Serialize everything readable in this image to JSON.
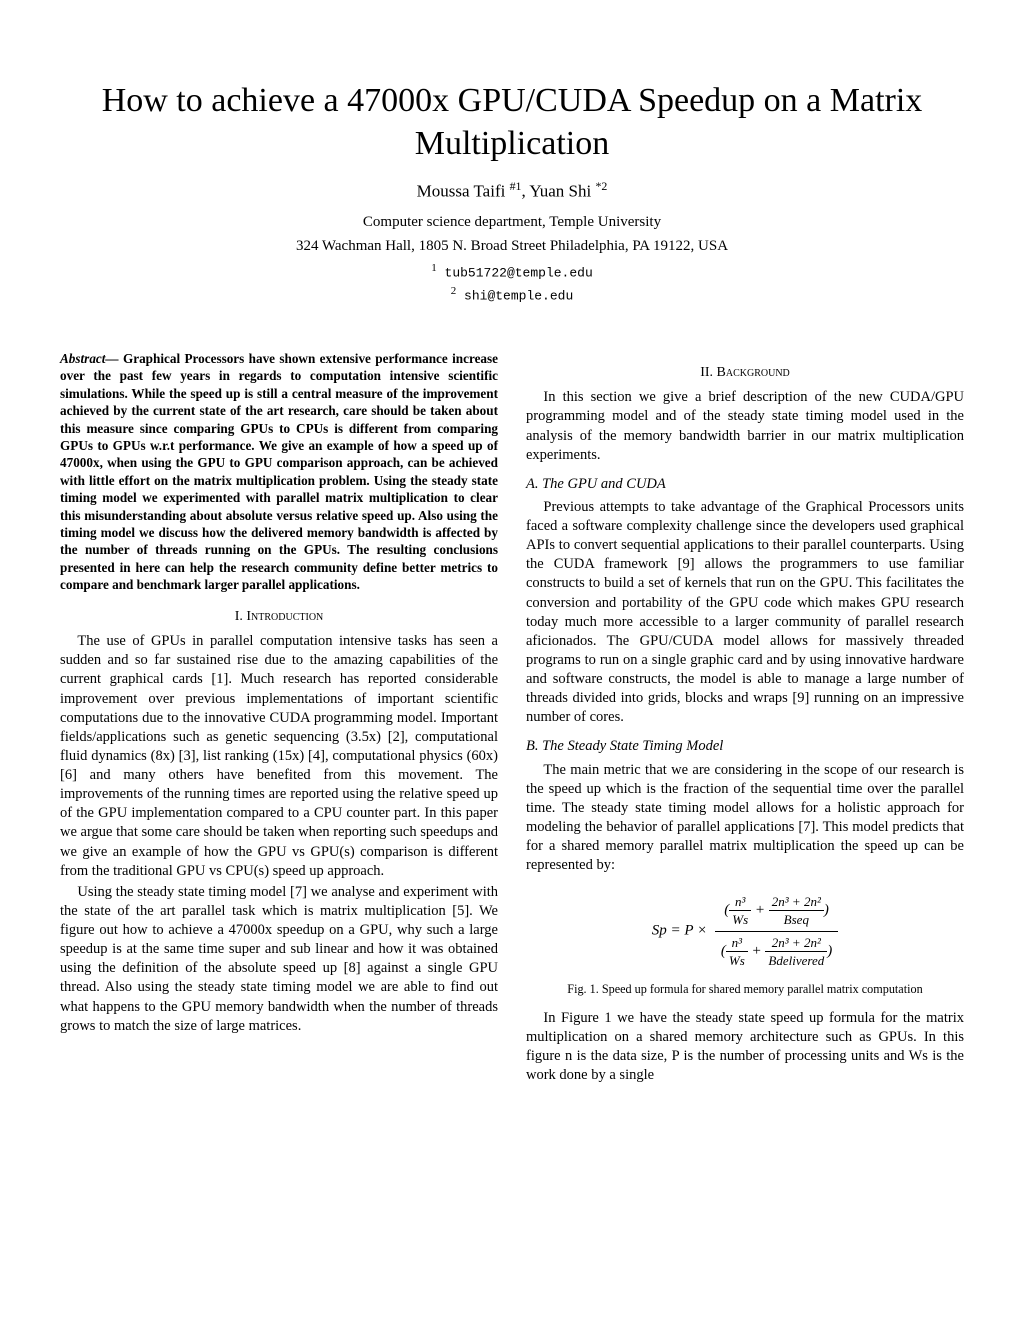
{
  "title": "How to achieve a 47000x GPU/CUDA Speedup on a Matrix Multiplication",
  "authors_html": "Moussa Taifi <sup>#1</sup>, Yuan Shi <sup>*2</sup>",
  "affiliation_line1": "Computer science department, Temple University",
  "affiliation_line2": "324 Wachman Hall, 1805 N. Broad Street Philadelphia, PA 19122, USA",
  "email1_sup": "1",
  "email1": "tub51722@temple.edu",
  "email2_sup": "2",
  "email2": "shi@temple.edu",
  "abstract_lead": "Abstract—",
  "abstract": " Graphical Processors have shown extensive performance increase over the past few years in regards to computation intensive scientific simulations. While the speed up is still a central measure of the improvement achieved by the current state of the art research, care should be taken about this measure since comparing GPUs to CPUs is different from comparing GPUs to GPUs w.r.t performance. We give an example of how a speed up of 47000x, when using the GPU to GPU comparison approach, can be achieved with little effort on the matrix multiplication problem. Using the steady state timing model we experimented with parallel matrix multiplication to clear this misunderstanding about absolute versus relative speed up. Also using the timing model we discuss how the delivered memory bandwidth is affected by the number of threads running on the GPUs. The resulting conclusions presented in here can help the research community define better metrics to compare and benchmark larger parallel applications.",
  "sec1_heading": "I.   Introduction",
  "sec1_p1": "The use of GPUs in parallel computation intensive tasks has seen a sudden and so far sustained rise due to the amazing capabilities of the current graphical cards [1]. Much research has reported considerable improvement over previous implementations of important scientific computations due to the innovative CUDA programming model. Important fields/applications such as genetic sequencing (3.5x) [2], computational fluid dynamics (8x) [3], list ranking (15x) [4], computational physics (60x) [6] and many others have benefited from this movement. The improvements of the running times are reported using the relative speed up of the GPU implementation compared to a CPU counter part. In this paper we argue that some care should be taken when reporting such speedups and we give an example of how the GPU vs GPU(s) comparison is different from the traditional GPU vs CPU(s) speed up approach.",
  "sec1_p2": "Using the steady state timing model [7] we analyse and experiment with the state of the art parallel task which is matrix multiplication [5]. We figure out how to achieve a 47000x speedup on a GPU, why such a large speedup is at the same time super and sub linear and how it was obtained using the definition of the absolute speed up [8] against a single GPU thread. Also using the steady state timing model we are able to find out what happens to the GPU memory bandwidth when the number of threads grows to match the size of large matrices.",
  "sec2_heading": "II.   Background",
  "sec2_p1": "In this section we give a brief description of the new CUDA/GPU programming model and of the steady state timing model used in the analysis of the memory bandwidth barrier in our matrix multiplication experiments.",
  "sec2a_heading": "A.  The GPU and CUDA",
  "sec2a_p1": "Previous attempts to take advantage of the Graphical Processors units faced a software complexity challenge since the developers used graphical APIs to convert sequential applications to their parallel counterparts. Using the CUDA framework [9] allows the programmers to use familiar constructs to build a set of kernels that run on the GPU. This facilitates the conversion and portability of the GPU code which makes GPU research today much more accessible to a larger community of parallel research aficionados. The GPU/CUDA model allows for massively threaded programs to run on a single graphic card and by using innovative hardware and software constructs, the model is able to manage a large number of threads divided into grids, blocks and wraps [9] running on an impressive number of cores.",
  "sec2b_heading": "B.  The Steady State Timing Model",
  "sec2b_p1": "The main metric that we are considering in the scope of our research is the speed up which is the fraction of the sequential time over the parallel time. The steady state timing model allows for a holistic approach for modeling the behavior of parallel applications [7]. This model predicts that for a shared memory parallel matrix multiplication the speed up can be represented by:",
  "formula": {
    "lhs": "Sp = P ×",
    "num_t1_n": "n³",
    "num_t1_d": "Ws",
    "num_t2_n": "2n³ + 2n²",
    "num_t2_d": "Bseq",
    "den_t1_n": "n³",
    "den_t1_d": "Ws",
    "den_t2_n": "2n³ + 2n²",
    "den_t2_d": "Bdelivered"
  },
  "fig1_caption": "Fig. 1.  Speed up formula for shared memory parallel matrix computation",
  "sec2b_p2": "In Figure 1 we have the steady state speed up formula for the matrix multiplication on a shared memory architecture such as GPUs. In this figure n is the data size, P is the number of processing units and Ws is the work done by a single"
}
